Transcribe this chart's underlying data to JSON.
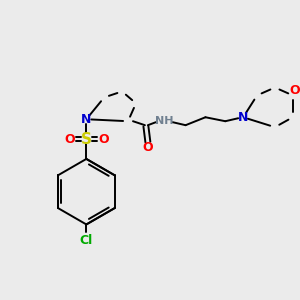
{
  "bg_color": "#ebebeb",
  "bond_color": "#000000",
  "atom_colors": {
    "N": "#0000cd",
    "O": "#ff0000",
    "S": "#cccc00",
    "Cl": "#00aa00",
    "NH": "#708090"
  },
  "figsize": [
    3.0,
    3.0
  ],
  "dpi": 100
}
